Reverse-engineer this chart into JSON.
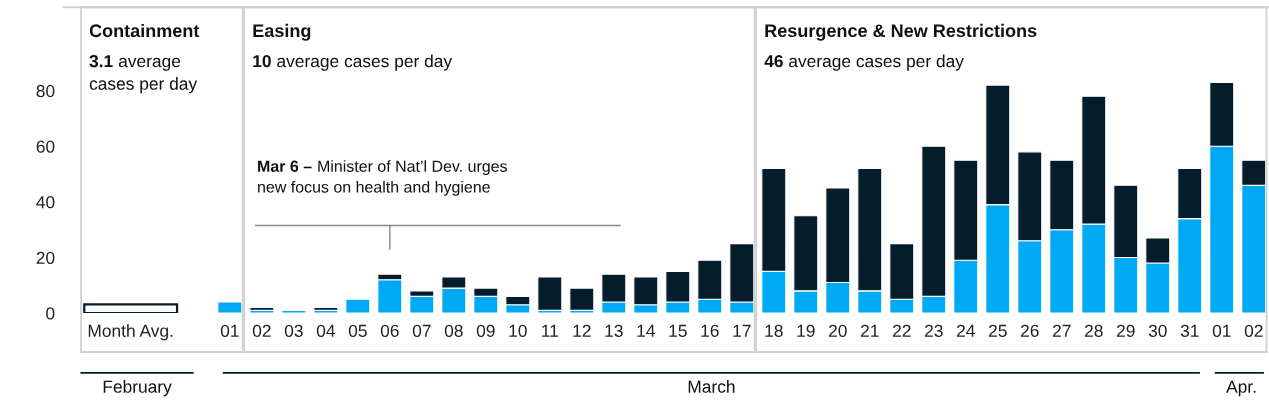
{
  "chart_data": {
    "type": "bar",
    "stacked": true,
    "grid": false,
    "categories": [
      "Month Avg.",
      "01",
      "02",
      "03",
      "04",
      "05",
      "06",
      "07",
      "08",
      "09",
      "10",
      "11",
      "12",
      "13",
      "14",
      "15",
      "16",
      "17",
      "18",
      "19",
      "20",
      "21",
      "22",
      "23",
      "24",
      "25",
      "26",
      "27",
      "28",
      "29",
      "30",
      "31",
      "01",
      "02"
    ],
    "series": [
      {
        "color": "#ffffff",
        "values": [
          3.1,
          null,
          null,
          null,
          null,
          null,
          null,
          null,
          null,
          null,
          null,
          null,
          null,
          null,
          null,
          null,
          null,
          null,
          null,
          null,
          null,
          null,
          null,
          null,
          null,
          null,
          null,
          null,
          null,
          null,
          null,
          null,
          null,
          null
        ]
      },
      {
        "color": "#00a9f4",
        "values": [
          null,
          4,
          1,
          1,
          1,
          5,
          12,
          6,
          9,
          6,
          3,
          1,
          1,
          4,
          3,
          4,
          5,
          4,
          15,
          8,
          11,
          8,
          5,
          6,
          19,
          39,
          26,
          30,
          32,
          20,
          18,
          34,
          60,
          46
        ]
      },
      {
        "color": "#051c2c",
        "values": [
          null,
          null,
          1,
          null,
          1,
          null,
          2,
          2,
          4,
          3,
          3,
          12,
          8,
          10,
          10,
          11,
          14,
          21,
          37,
          27,
          34,
          44,
          20,
          54,
          36,
          43,
          32,
          25,
          46,
          26,
          9,
          18,
          23,
          9
        ]
      }
    ],
    "ylim": [
      0,
      110
    ],
    "yticks": [
      0,
      20,
      40,
      60,
      80
    ],
    "annotations": [
      "Containment",
      "3.1 average\ncases per day",
      "Easing",
      "10 average cases per day",
      "Resurgence & New Restrictions",
      "46 average cases per day",
      "Mar 6 – Minister of Nat’l Dev. urges\nnew focus on health and hygiene",
      "February",
      "March",
      "Apr."
    ]
  }
}
